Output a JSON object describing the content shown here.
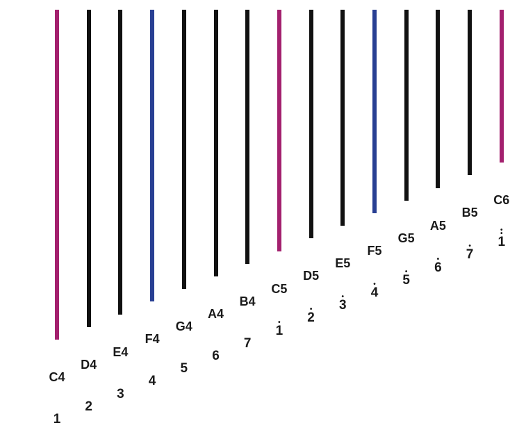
{
  "colors": {
    "root": "#a3206e",
    "fourth": "#283f93",
    "other": "#111111"
  },
  "tines": [
    {
      "note": "C4",
      "number": "1",
      "octave_dots": 0,
      "kind": "root"
    },
    {
      "note": "D4",
      "number": "2",
      "octave_dots": 0,
      "kind": "other"
    },
    {
      "note": "E4",
      "number": "3",
      "octave_dots": 0,
      "kind": "other"
    },
    {
      "note": "F4",
      "number": "4",
      "octave_dots": 0,
      "kind": "fourth"
    },
    {
      "note": "G4",
      "number": "5",
      "octave_dots": 0,
      "kind": "other"
    },
    {
      "note": "A4",
      "number": "6",
      "octave_dots": 0,
      "kind": "other"
    },
    {
      "note": "B4",
      "number": "7",
      "octave_dots": 0,
      "kind": "other"
    },
    {
      "note": "C5",
      "number": "1",
      "octave_dots": 1,
      "kind": "root"
    },
    {
      "note": "D5",
      "number": "2",
      "octave_dots": 1,
      "kind": "other"
    },
    {
      "note": "E5",
      "number": "3",
      "octave_dots": 1,
      "kind": "other"
    },
    {
      "note": "F5",
      "number": "4",
      "octave_dots": 1,
      "kind": "fourth"
    },
    {
      "note": "G5",
      "number": "5",
      "octave_dots": 1,
      "kind": "other"
    },
    {
      "note": "A5",
      "number": "6",
      "octave_dots": 1,
      "kind": "other"
    },
    {
      "note": "B5",
      "number": "7",
      "octave_dots": 1,
      "kind": "other"
    },
    {
      "note": "C6",
      "number": "1",
      "octave_dots": 2,
      "kind": "root"
    }
  ]
}
